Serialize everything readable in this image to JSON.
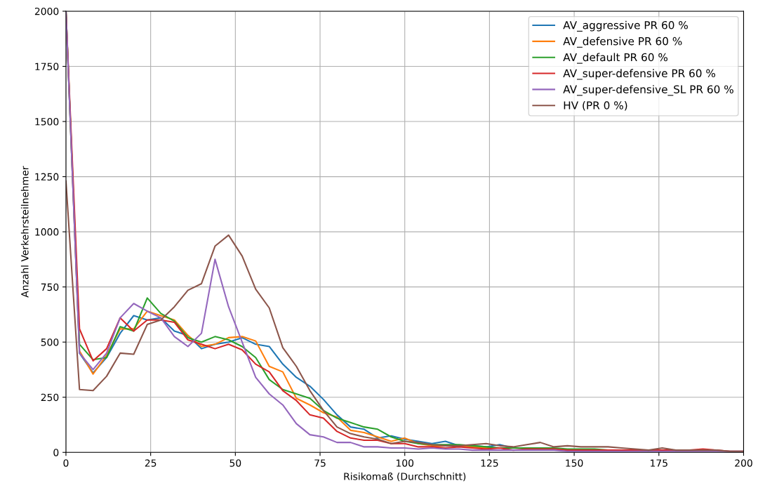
{
  "chart_data": {
    "type": "line",
    "xlabel": "Risikomaß (Durchschnitt)",
    "ylabel": "Anzahl Verkehrsteilnehmer",
    "x": [
      0,
      4,
      8,
      12,
      16,
      20,
      24,
      28,
      32,
      36,
      40,
      44,
      48,
      52,
      56,
      60,
      64,
      68,
      72,
      76,
      80,
      84,
      88,
      92,
      96,
      100,
      104,
      108,
      112,
      116,
      120,
      124,
      128,
      132,
      136,
      140,
      144,
      148,
      152,
      156,
      160,
      164,
      168,
      172,
      176,
      180,
      184,
      188,
      192,
      196,
      200
    ],
    "xlim": [
      0,
      200
    ],
    "ylim": [
      0,
      2000
    ],
    "xticks": [
      0,
      25,
      50,
      75,
      100,
      125,
      150,
      175,
      200
    ],
    "yticks": [
      0,
      250,
      500,
      750,
      1000,
      1250,
      1500,
      1750,
      2000
    ],
    "grid": true,
    "legend": "top right",
    "series": [
      {
        "name": "AV_aggressive PR 60 %",
        "color": "#1f77b4",
        "values": [
          2000,
          450,
          360,
          430,
          540,
          620,
          600,
          610,
          550,
          530,
          470,
          490,
          500,
          520,
          490,
          480,
          400,
          340,
          300,
          240,
          170,
          115,
          105,
          65,
          75,
          60,
          50,
          40,
          50,
          30,
          30,
          25,
          35,
          20,
          null,
          null,
          null,
          null,
          null,
          null,
          null,
          null,
          null,
          null,
          null,
          null,
          null,
          null,
          null,
          null,
          null
        ]
      },
      {
        "name": "AV_defensive PR 60 %",
        "color": "#ff7f0e",
        "values": [
          2000,
          460,
          355,
          440,
          560,
          560,
          640,
          620,
          600,
          530,
          480,
          490,
          520,
          525,
          505,
          390,
          365,
          245,
          215,
          180,
          160,
          100,
          90,
          70,
          50,
          65,
          40,
          30,
          30,
          30,
          25,
          20,
          20,
          null,
          null,
          null,
          null,
          null,
          null,
          null,
          null,
          null,
          null,
          null,
          null,
          null,
          null,
          null,
          null,
          null,
          null
        ]
      },
      {
        "name": "AV_default PR 60 %",
        "color": "#2ca02c",
        "values": [
          2000,
          490,
          420,
          430,
          570,
          550,
          700,
          630,
          595,
          520,
          500,
          525,
          510,
          480,
          430,
          330,
          285,
          265,
          245,
          190,
          155,
          135,
          115,
          105,
          70,
          50,
          40,
          35,
          35,
          35,
          30,
          25,
          20,
          20,
          20,
          20,
          20,
          15,
          15,
          15,
          10,
          10,
          null,
          null,
          null,
          null,
          null,
          null,
          null,
          null,
          null
        ]
      },
      {
        "name": "AV_super-defensive PR 60 %",
        "color": "#d62728",
        "values": [
          2000,
          560,
          415,
          470,
          610,
          550,
          600,
          600,
          590,
          510,
          490,
          470,
          490,
          465,
          400,
          365,
          280,
          235,
          170,
          155,
          95,
          65,
          55,
          55,
          40,
          40,
          25,
          25,
          20,
          25,
          20,
          15,
          20,
          10,
          15,
          15,
          15,
          10,
          10,
          10,
          10,
          10,
          10,
          10,
          10,
          10,
          10,
          15,
          10,
          5,
          5
        ]
      },
      {
        "name": "AV_super-defensive_SL PR 60 %",
        "color": "#9467bd",
        "values": [
          2000,
          450,
          375,
          450,
          610,
          675,
          640,
          610,
          525,
          480,
          540,
          875,
          660,
          500,
          340,
          265,
          215,
          130,
          80,
          70,
          45,
          45,
          25,
          25,
          20,
          20,
          15,
          20,
          15,
          15,
          10,
          10,
          10,
          10,
          10,
          10,
          10,
          5,
          5,
          5,
          5,
          5,
          5,
          5,
          5,
          5,
          5,
          5,
          5,
          5,
          5
        ]
      },
      {
        "name": "HV (PR 0 %)",
        "color": "#8c564b",
        "values": [
          1230,
          285,
          280,
          345,
          450,
          445,
          580,
          600,
          660,
          735,
          765,
          935,
          985,
          890,
          740,
          655,
          475,
          390,
          280,
          190,
          115,
          85,
          70,
          60,
          40,
          50,
          45,
          35,
          30,
          30,
          35,
          40,
          30,
          25,
          35,
          45,
          25,
          30,
          25,
          25,
          25,
          20,
          15,
          10,
          20,
          10,
          10,
          10,
          10,
          5,
          5
        ]
      }
    ]
  }
}
